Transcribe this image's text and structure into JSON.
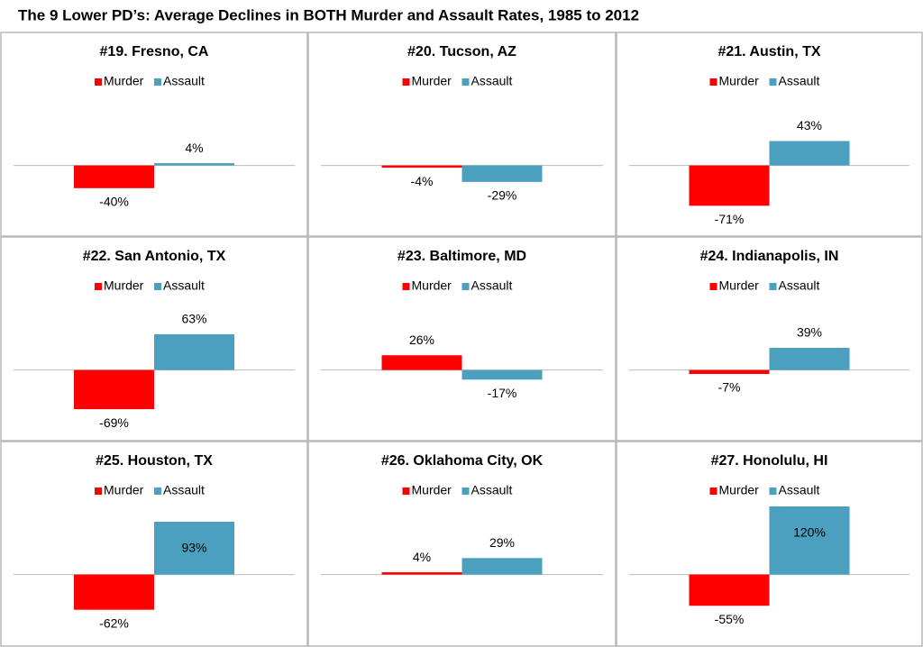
{
  "title": "The 9 Lower PD’s: Average Declines in BOTH Murder and Assault Rates, 1985 to 2012",
  "chart_data": [
    {
      "type": "bar",
      "title": "#19. Fresno, CA",
      "ylim": [
        -80,
        120
      ],
      "series": [
        {
          "name": "Murder",
          "color": "#ff0000",
          "values": [
            -40
          ],
          "value_labels": [
            "-40%"
          ]
        },
        {
          "name": "Assault",
          "color": "#4aa0be",
          "values": [
            4
          ],
          "value_labels": [
            "4%"
          ]
        }
      ]
    },
    {
      "type": "bar",
      "title": "#20. Tucson, AZ",
      "ylim": [
        -80,
        120
      ],
      "series": [
        {
          "name": "Murder",
          "color": "#ff0000",
          "values": [
            -4
          ],
          "value_labels": [
            "-4%"
          ]
        },
        {
          "name": "Assault",
          "color": "#4aa0be",
          "values": [
            -29
          ],
          "value_labels": [
            "-29%"
          ]
        }
      ]
    },
    {
      "type": "bar",
      "title": "#21. Austin, TX",
      "ylim": [
        -80,
        120
      ],
      "series": [
        {
          "name": "Murder",
          "color": "#ff0000",
          "values": [
            -71
          ],
          "value_labels": [
            "-71%"
          ]
        },
        {
          "name": "Assault",
          "color": "#4aa0be",
          "values": [
            43
          ],
          "value_labels": [
            "43%"
          ]
        }
      ]
    },
    {
      "type": "bar",
      "title": "#22. San Antonio, TX",
      "ylim": [
        -80,
        120
      ],
      "series": [
        {
          "name": "Murder",
          "color": "#ff0000",
          "values": [
            -69
          ],
          "value_labels": [
            "-69%"
          ]
        },
        {
          "name": "Assault",
          "color": "#4aa0be",
          "values": [
            63
          ],
          "value_labels": [
            "63%"
          ]
        }
      ]
    },
    {
      "type": "bar",
      "title": "#23. Baltimore, MD",
      "ylim": [
        -80,
        120
      ],
      "series": [
        {
          "name": "Murder",
          "color": "#ff0000",
          "values": [
            26
          ],
          "value_labels": [
            "26%"
          ]
        },
        {
          "name": "Assault",
          "color": "#4aa0be",
          "values": [
            -17
          ],
          "value_labels": [
            "-17%"
          ]
        }
      ]
    },
    {
      "type": "bar",
      "title": "#24. Indianapolis, IN",
      "ylim": [
        -80,
        120
      ],
      "series": [
        {
          "name": "Murder",
          "color": "#ff0000",
          "values": [
            -7
          ],
          "value_labels": [
            "-7%"
          ]
        },
        {
          "name": "Assault",
          "color": "#4aa0be",
          "values": [
            39
          ],
          "value_labels": [
            "39%"
          ]
        }
      ]
    },
    {
      "type": "bar",
      "title": "#25. Houston, TX",
      "ylim": [
        -80,
        120
      ],
      "series": [
        {
          "name": "Murder",
          "color": "#ff0000",
          "values": [
            -62
          ],
          "value_labels": [
            "-62%"
          ]
        },
        {
          "name": "Assault",
          "color": "#4aa0be",
          "values": [
            93
          ],
          "value_labels": [
            "93%"
          ]
        }
      ]
    },
    {
      "type": "bar",
      "title": "#26. Oklahoma City, OK",
      "ylim": [
        -80,
        120
      ],
      "series": [
        {
          "name": "Murder",
          "color": "#ff0000",
          "values": [
            4
          ],
          "value_labels": [
            "4%"
          ]
        },
        {
          "name": "Assault",
          "color": "#4aa0be",
          "values": [
            29
          ],
          "value_labels": [
            "29%"
          ]
        }
      ]
    },
    {
      "type": "bar",
      "title": "#27. Honolulu, HI",
      "ylim": [
        -80,
        120
      ],
      "series": [
        {
          "name": "Murder",
          "color": "#ff0000",
          "values": [
            -55
          ],
          "value_labels": [
            "-55%"
          ]
        },
        {
          "name": "Assault",
          "color": "#4aa0be",
          "values": [
            120
          ],
          "value_labels": [
            "120%"
          ]
        }
      ]
    }
  ]
}
